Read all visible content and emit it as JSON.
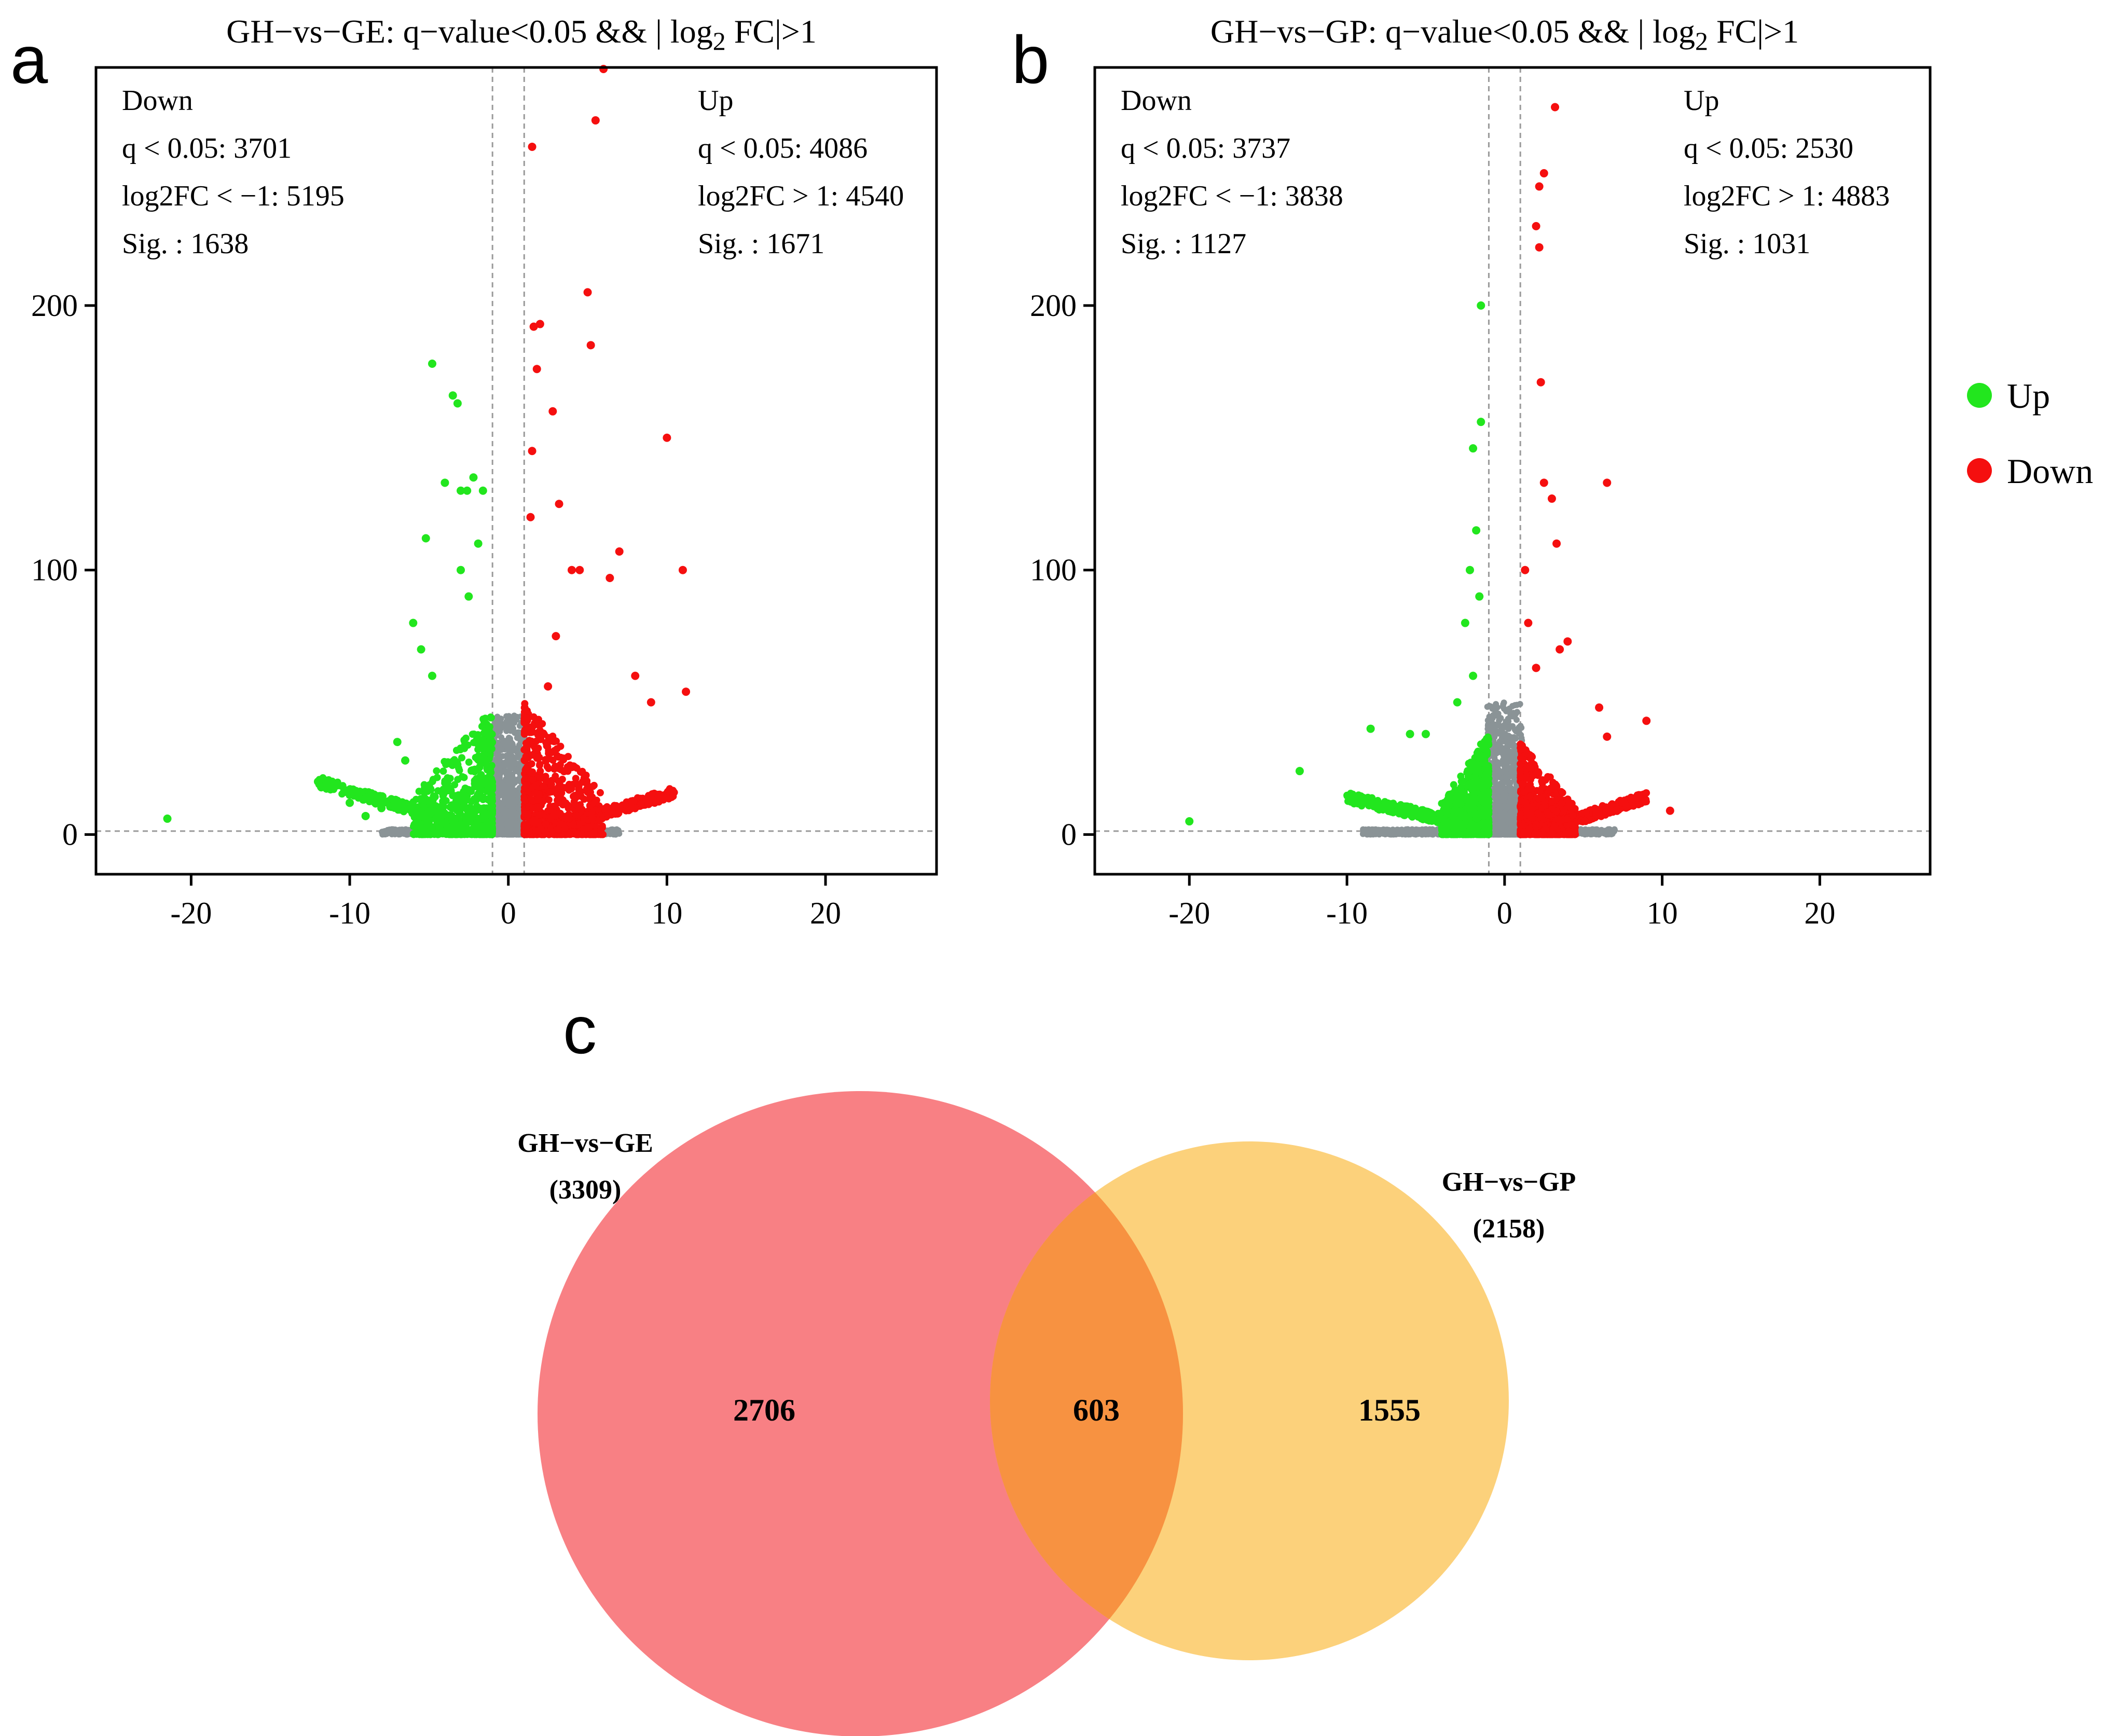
{
  "chart_data": [
    {
      "panel": "a",
      "type": "scatter",
      "title_prefix": "GH−vs−GE: q−value<0.05 && | log",
      "title_sub": "2",
      "title_suffix": " FC|>1",
      "xlim": [
        -26,
        27
      ],
      "ylim": [
        -15,
        290
      ],
      "xticks": [
        -20,
        -10,
        0,
        10,
        20
      ],
      "xtick_labels": [
        "-20",
        "-10",
        "0",
        "10",
        "20"
      ],
      "yticks": [
        0,
        100,
        200
      ],
      "ytick_labels": [
        "0",
        "100",
        "200"
      ],
      "thresholds": {
        "log2fc": [
          -1,
          1
        ],
        "y_line": 1.3
      },
      "annotations": {
        "left": [
          "Down",
          "q < 0.05: 3701",
          "log2FC < −1: 5195",
          "Sig. : 1638"
        ],
        "right": [
          "Up",
          "q < 0.05: 4086",
          "log2FC > 1: 4540",
          "Sig. : 1671"
        ]
      },
      "green_points": [
        [
          -21.5,
          6
        ],
        [
          -12,
          20
        ],
        [
          -4.8,
          178
        ],
        [
          -3.5,
          166
        ],
        [
          -3.2,
          163
        ],
        [
          -5.2,
          112
        ],
        [
          -4,
          133
        ],
        [
          -3,
          130
        ],
        [
          -2.6,
          130
        ],
        [
          -2.2,
          135
        ],
        [
          -6,
          80
        ],
        [
          -6.5,
          28
        ],
        [
          -5.5,
          70
        ],
        [
          -4.8,
          60
        ],
        [
          -8,
          10
        ],
        [
          -9,
          7
        ],
        [
          -10,
          12
        ],
        [
          -3,
          100
        ],
        [
          -2.5,
          90
        ],
        [
          -1.6,
          130
        ],
        [
          -1.9,
          110
        ],
        [
          -7,
          35
        ]
      ],
      "green_tail": {
        "x": [
          -12,
          -3
        ],
        "y": [
          18,
          2
        ]
      },
      "green_cloud": {
        "x": [
          -6,
          -1
        ],
        "y": [
          0,
          48
        ]
      },
      "red_points": [
        [
          6,
          290
        ],
        [
          5.5,
          270
        ],
        [
          1.5,
          260
        ],
        [
          10,
          150
        ],
        [
          1.6,
          192
        ],
        [
          2,
          193
        ],
        [
          5,
          205
        ],
        [
          5.2,
          185
        ],
        [
          11,
          100
        ],
        [
          7,
          107
        ],
        [
          6.4,
          97
        ],
        [
          9,
          50
        ],
        [
          11.2,
          54
        ],
        [
          8,
          60
        ],
        [
          1.8,
          176
        ],
        [
          2.8,
          160
        ],
        [
          1.5,
          145
        ],
        [
          3.2,
          125
        ],
        [
          4,
          100
        ],
        [
          4.5,
          100
        ],
        [
          3,
          75
        ],
        [
          2.5,
          56
        ],
        [
          1.4,
          120
        ]
      ],
      "red_tail": {
        "x": [
          3,
          10.5
        ],
        "y": [
          1,
          14
        ]
      },
      "red_cloud": {
        "x": [
          1,
          6
        ],
        "y": [
          0,
          50
        ]
      },
      "gray_band": {
        "x": [
          -1.1,
          1.1
        ],
        "y": [
          0,
          45
        ]
      },
      "gray_floor": {
        "x": [
          -8,
          7
        ],
        "y": [
          0,
          2
        ]
      }
    },
    {
      "panel": "b",
      "type": "scatter",
      "title_prefix": "GH−vs−GP: q−value<0.05 && | log",
      "title_sub": "2",
      "title_suffix": " FC|>1",
      "xlim": [
        -26,
        27
      ],
      "ylim": [
        -15,
        290
      ],
      "xticks": [
        -20,
        -10,
        0,
        10,
        20
      ],
      "xtick_labels": [
        "-20",
        "-10",
        "0",
        "10",
        "20"
      ],
      "yticks": [
        0,
        100,
        200
      ],
      "ytick_labels": [
        "0",
        "100",
        "200"
      ],
      "thresholds": {
        "log2fc": [
          -1,
          1
        ],
        "y_line": 1.3
      },
      "annotations": {
        "left": [
          "Down",
          "q < 0.05: 3737",
          "log2FC < −1: 3838",
          "Sig. : 1127"
        ],
        "right": [
          "Up",
          "q < 0.05: 2530",
          "log2FC > 1: 4883",
          "Sig. : 1031"
        ]
      },
      "green_points": [
        [
          -20,
          5
        ],
        [
          -13,
          24
        ],
        [
          -8.5,
          40
        ],
        [
          -1.5,
          200
        ],
        [
          -1.5,
          156
        ],
        [
          -2,
          146
        ],
        [
          -1.8,
          115
        ],
        [
          -2.2,
          100
        ],
        [
          -1.6,
          90
        ],
        [
          -2.5,
          80
        ],
        [
          -5,
          38
        ],
        [
          -6,
          38
        ],
        [
          -3,
          50
        ],
        [
          -2,
          60
        ]
      ],
      "green_tail": {
        "x": [
          -10,
          -2.5
        ],
        "y": [
          12,
          2
        ]
      },
      "green_cloud": {
        "x": [
          -4,
          -1
        ],
        "y": [
          0,
          40
        ]
      },
      "red_points": [
        [
          3.2,
          275
        ],
        [
          2.5,
          250
        ],
        [
          2.2,
          245
        ],
        [
          2,
          230
        ],
        [
          2.2,
          222
        ],
        [
          2.3,
          171
        ],
        [
          2.5,
          133
        ],
        [
          3,
          127
        ],
        [
          6.5,
          133
        ],
        [
          3.3,
          110
        ],
        [
          4,
          73
        ],
        [
          3.5,
          70
        ],
        [
          1.5,
          80
        ],
        [
          1.3,
          100
        ],
        [
          2,
          63
        ],
        [
          6.5,
          37
        ],
        [
          9,
          43
        ],
        [
          10.5,
          9
        ],
        [
          6,
          48
        ]
      ],
      "red_tail": {
        "x": [
          3,
          9
        ],
        "y": [
          1,
          12
        ]
      },
      "red_cloud": {
        "x": [
          1,
          4.5
        ],
        "y": [
          0,
          35
        ]
      },
      "gray_band": {
        "x": [
          -1.1,
          1.1
        ],
        "y": [
          0,
          50
        ]
      },
      "gray_floor": {
        "x": [
          -9,
          7
        ],
        "y": [
          0,
          2
        ]
      }
    },
    {
      "panel": "c",
      "type": "venn",
      "sets": [
        {
          "name": "GH−vs−GE",
          "total": "(3309)",
          "only": "2706",
          "color": "#f76a6f"
        },
        {
          "name": "GH−vs−GP",
          "total": "(2158)",
          "only": "1555",
          "color": "#fbc55a"
        }
      ],
      "intersection": "603",
      "intersection_color": "#f78f3f"
    }
  ],
  "legend": [
    {
      "label": "Up",
      "color": "#22e61e"
    },
    {
      "label": "Down",
      "color": "#f50f0f"
    }
  ],
  "colors": {
    "green": "#22e61e",
    "red": "#f50f0f",
    "gray": "#8a9396"
  }
}
